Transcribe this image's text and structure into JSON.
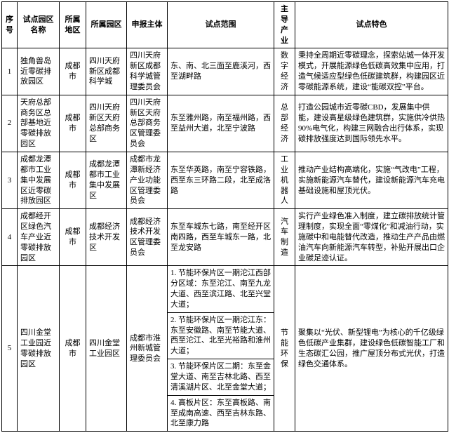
{
  "columns": [
    "序号",
    "试点园区名称",
    "所属地区",
    "所属园区",
    "申报主体",
    "试点范围",
    "主导产业",
    "试点特色"
  ],
  "rows": [
    {
      "no": "1",
      "name": "独角兽岛近零碳排放园区",
      "region": "成都市",
      "park": "四川天府新区成都科学城",
      "applicant": "四川天府新区成都科学城管理委员会",
      "scope": "东、南、北三面至鹿溪河，西至湖畔路",
      "industry": "数字经济",
      "feature": "秉持全周期近零碳理念，探索站城一体开发模式，开展能源绿色低碳高效集中应用，打造气候适应型绿色低碳建筑群，构建园区近零碳能源系统，建设“能碳双控”平台。"
    },
    {
      "no": "2",
      "name": "天府总部商务区总部基地近零碳排放园区",
      "region": "成都市",
      "park": "四川天府新区天府总部商务区",
      "applicant": "四川天府新区天府总部商务区管理委员会",
      "scope": "东至雅州路，南至福州路，西至益州大道，北至宁波路",
      "industry": "总部经济",
      "feature": "打造公园城市近零碳CBD，发展集中供能，建设高星级绿色建筑群，实施供冷供热90%电气化，构建三网融合出行体系，实现碳排放强度达到国际领先水平。"
    },
    {
      "no": "3",
      "name": "成都龙潭都市工业集中发展区近零碳排放园区",
      "region": "成都市",
      "park": "成都龙潭都市工业集中发展区",
      "applicant": "成都市龙潭新经济产业功能区管理委员会",
      "scope": "东至华英路，南至宁容铁路，西至东三环路二段，北至成洛路",
      "industry": "工业机器人",
      "feature": "推动产业结构高端化，实施“气改电”工程，实施新能源汽车替代，建设新能源汽车充电基础设施和屋顶光伏。"
    },
    {
      "no": "4",
      "name": "成都经开区绿色汽车产业近零碳排放园区",
      "region": "成都市",
      "park": "成都经济技术开发区",
      "applicant": "成都经济技术开发区管理委员会",
      "scope": "东至车城东七路，南至经开区南四路，西至车城东一路，北至龙安路",
      "industry": "汽车制造",
      "feature": "实行产业绿色准入制度，建立碳排放统计管理制度，实现全面“零煤化”和减油行动，实施碳中和电能替代改造，推动生产产品由燃油汽车向新能源汽车转型，补贴开展出口企业碳足迹认证。"
    },
    {
      "no": "5",
      "name": "四川金堂工业园近零碳排放园区",
      "region": "成都市",
      "park": "四川金堂工业园区",
      "applicant": "成都市淮州新城管理委员会",
      "scope_items": [
        "1. 节能环保片区一期沱江西部分区域：东至沱江、南至九龙大道、西至滨江路、北至兴堂大道；",
        "2. 节能环保片区一期沱江东：东至安徽路、南至节能大道、西至沱江、北至光裕路和淮州大道；",
        "3. 节能环保片区二期：东至金堂大道、南至吉林北路、西至清溪湖片区、北至金堂大道；",
        "4. 高板片区：东至高板路、南至成南高速、西至吉林东路、北至康力路"
      ],
      "industry": "节能环保",
      "feature": "聚集以“光伏、新型锂电”为核心的千亿级绿色低碳产业集群，建设绿色低碳智能工厂和生态碳汇公园，推广屋顶分布式光伏，打造绿色交通体系。"
    }
  ]
}
